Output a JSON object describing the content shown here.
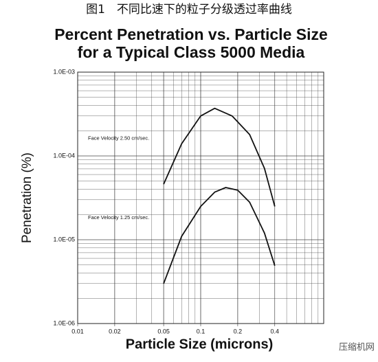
{
  "header": "图1　不同比速下的粒子分级透过率曲线",
  "watermark": "压缩机网",
  "chart_data": {
    "type": "line",
    "title": "Percent Penetration vs. Particle Size",
    "subtitle": "for a Typical Class 5000 Media",
    "x_label": "Particle Size (microns)",
    "y_label": "Penetration (%)",
    "xscale": "log",
    "yscale": "log",
    "grid": true,
    "xlim": [
      0.01,
      1
    ],
    "ylim": [
      1e-06,
      0.001
    ],
    "xticks": [
      0.01,
      0.02,
      0.05,
      0.1,
      0.2,
      0.4
    ],
    "yticks": [
      {
        "value": 1e-06,
        "label": "1.0E-06"
      },
      {
        "value": 1e-05,
        "label": "1.0E-05"
      },
      {
        "value": 0.0001,
        "label": "1.0E-04"
      },
      {
        "value": 0.001,
        "label": "1.0E-03"
      }
    ],
    "series": [
      {
        "name": "Face Velocity 2.50 cm/sec.",
        "color": "#111111",
        "x": [
          0.05,
          0.07,
          0.1,
          0.13,
          0.18,
          0.25,
          0.33,
          0.4
        ],
        "values": [
          4.6e-05,
          0.00014,
          0.0003,
          0.00037,
          0.0003,
          0.00018,
          7.1e-05,
          2.5e-05
        ]
      },
      {
        "name": "Face Velocity 1.25 cm/sec.",
        "color": "#111111",
        "x": [
          0.05,
          0.07,
          0.1,
          0.13,
          0.16,
          0.2,
          0.25,
          0.33,
          0.4
        ],
        "values": [
          3e-06,
          1.1e-05,
          2.5e-05,
          3.7e-05,
          4.2e-05,
          3.9e-05,
          2.8e-05,
          1.2e-05,
          4.9e-06
        ]
      }
    ]
  }
}
